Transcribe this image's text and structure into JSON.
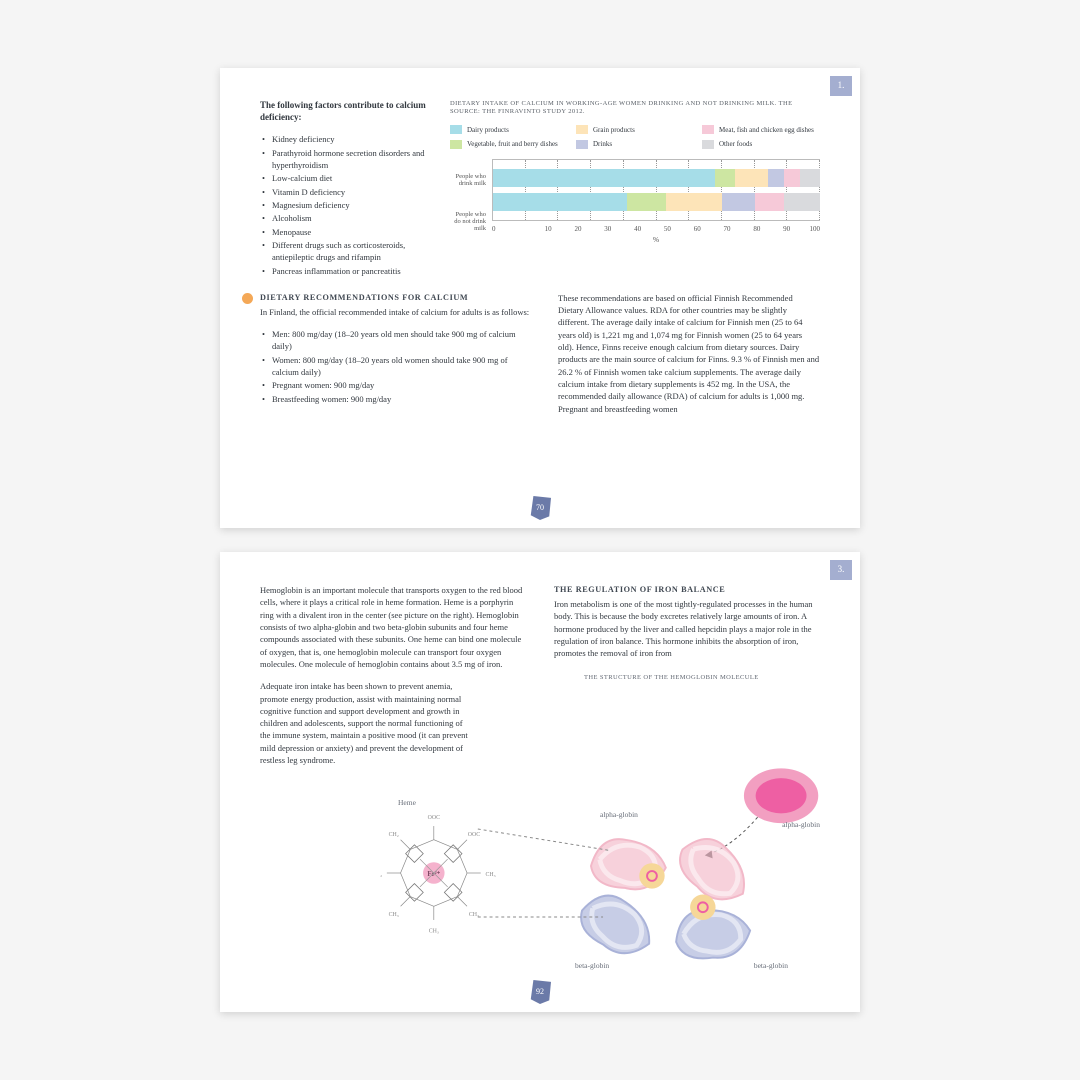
{
  "colors": {
    "dairy": "#a6dde8",
    "vegetable": "#cde6a2",
    "grain": "#fde4b8",
    "drinks": "#c2c8e2",
    "meat": "#f6c9d8",
    "other": "#d9dadd",
    "tab": "#a4aed0",
    "page_badge": "#6b7aa8",
    "orange": "#f4a857",
    "rbc_outer": "#f29fc1",
    "rbc_inner": "#ee5fa3",
    "heme_center": "#f29fc1",
    "alpha_globin": "#f2b8c8",
    "beta_globin": "#a9b2d8",
    "heme_spot": "#f6d798"
  },
  "page1": {
    "tab": "1.",
    "page_num": "70",
    "factors_title": "The following factors contribute to calcium deficiency:",
    "factors": [
      "Kidney deficiency",
      "Parathyroid hormone secretion disorders and hyperthyroidism",
      "Low-calcium diet",
      "Vitamin D deficiency",
      "Magnesium deficiency",
      "Alcoholism",
      "Menopause",
      "Different drugs such as corticosteroids, antiepileptic drugs and rifampin",
      "Pancreas inflammation or pancreatitis"
    ],
    "chart": {
      "title": "DIETARY INTAKE OF CALCIUM IN WORKING-AGE WOMEN DRINKING AND NOT DRINKING MILK. THE SOURCE: THE FINRAVINTO STUDY 2012.",
      "type": "stacked_bar_horizontal",
      "x_label": "%",
      "x_min": 0,
      "x_max": 100,
      "x_tick_step": 10,
      "legend": [
        {
          "label": "Dairy products",
          "color_key": "dairy"
        },
        {
          "label": "Grain products",
          "color_key": "grain"
        },
        {
          "label": "Meat, fish and chicken egg dishes",
          "color_key": "meat"
        },
        {
          "label": "Vegetable, fruit and berry dishes",
          "color_key": "vegetable"
        },
        {
          "label": "Drinks",
          "color_key": "drinks"
        },
        {
          "label": "Other foods",
          "color_key": "other"
        }
      ],
      "rows": [
        {
          "label": "People who drink milk",
          "segments": [
            {
              "color_key": "dairy",
              "value": 68
            },
            {
              "color_key": "vegetable",
              "value": 6
            },
            {
              "color_key": "grain",
              "value": 10
            },
            {
              "color_key": "drinks",
              "value": 5
            },
            {
              "color_key": "meat",
              "value": 5
            },
            {
              "color_key": "other",
              "value": 6
            }
          ]
        },
        {
          "label": "People who do not drink milk",
          "segments": [
            {
              "color_key": "dairy",
              "value": 41
            },
            {
              "color_key": "vegetable",
              "value": 12
            },
            {
              "color_key": "grain",
              "value": 17
            },
            {
              "color_key": "drinks",
              "value": 10
            },
            {
              "color_key": "meat",
              "value": 9
            },
            {
              "color_key": "other",
              "value": 11
            }
          ]
        }
      ]
    },
    "rec_title": "DIETARY RECOMMENDATIONS FOR CALCIUM",
    "rec_intro": "In Finland, the official recommended intake of calcium for adults is as follows:",
    "rec_items": [
      "Men: 800 mg/day (18–20 years old men should take 900 mg of calcium daily)",
      "Women: 800 mg/day (18–20 years old women should take 900 mg of calcium daily)",
      "Pregnant women: 900 mg/day",
      "Breastfeeding women: 900 mg/day"
    ],
    "right_para": "These recommendations are based on official Finnish Recommended Dietary Allowance values. RDA for other countries may be slightly different. The average daily intake of calcium for Finnish men (25 to 64 years old) is 1,221 mg and 1,074 mg for Finnish women (25 to 64 years old). Hence, Finns receive enough calcium from dietary sources. Dairy products are the main source of calcium for Finns. 9.3 % of Finnish men and 26.2 % of Finnish women take calcium supplements. The average daily calcium intake from dietary supplements is 452 mg. In the USA, the recommended daily allowance (RDA) of calcium for adults is 1,000 mg. Pregnant and breastfeeding women"
  },
  "page2": {
    "tab": "3.",
    "page_num": "92",
    "para1": "Hemoglobin is an important molecule that transports oxygen to the red blood cells, where it plays a critical role in heme formation. Heme is a porphyrin ring with a divalent iron in the center (see picture on the right). Hemoglobin consists of two alpha-globin and two beta-globin subunits and four heme compounds associated with these subunits. One heme can bind one molecule of oxygen, that is, one hemoglobin molecule can transport four oxygen molecules. One molecule of hemoglobin contains about 3.5 mg of iron.",
    "para2": "Adequate iron intake has been shown to prevent anemia, promote energy production, assist with maintaining normal cognitive function and support development and growth in children and adolescents, support the normal functioning of the immune system, maintain a positive mood (it can prevent mild depression or anxiety) and prevent the development of restless leg syndrome.",
    "right_title": "THE REGULATION OF IRON BALANCE",
    "right_para": "Iron metabolism is one of the most tightly-regulated processes in the human body. This is because the body excretes relatively large amounts of iron. A hormone produced by the liver and called hepcidin plays a major role in the regulation of iron balance. This hormone inhibits the absorption of iron, promotes the removal of iron from",
    "diagram_title": "THE STRUCTURE OF THE HEMOGLOBIN MOLECULE",
    "labels": {
      "heme": "Heme",
      "alpha": "alpha-globin",
      "beta": "beta-globin",
      "fe": "Fe²⁺"
    }
  }
}
